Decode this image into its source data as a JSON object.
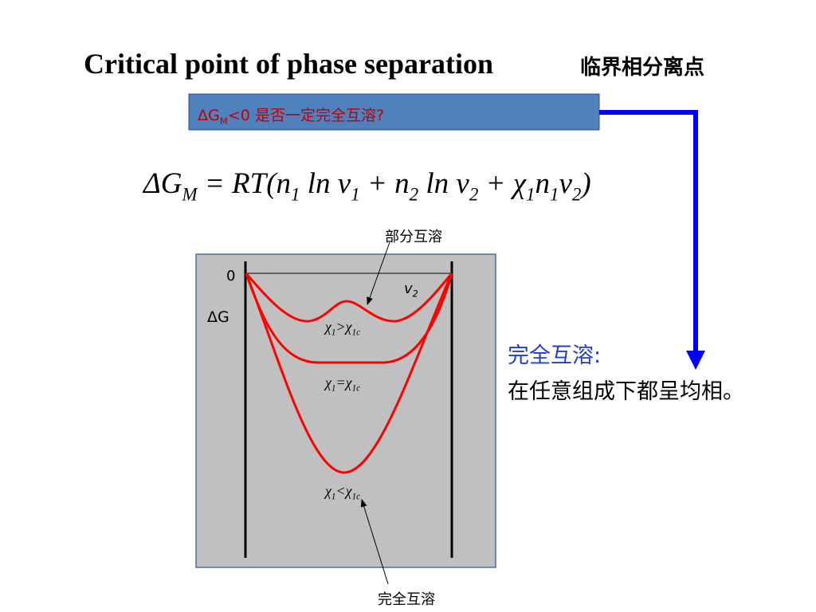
{
  "header": {
    "title": "Critical point of phase separation",
    "title_cn": "临界相分离点"
  },
  "question": {
    "parts": [
      {
        "text": "ΔG",
        "sub": "M"
      },
      {
        "text": "<0 是否一定完全互溶?"
      }
    ]
  },
  "equation": {
    "parts": [
      {
        "text": "ΔG",
        "sub": "M"
      },
      {
        "text": " = RT("
      },
      {
        "text": "n",
        "sub": "1"
      },
      {
        "text": " ln "
      },
      {
        "text": "v",
        "sub": "1"
      },
      {
        "text": " + "
      },
      {
        "text": "n",
        "sub": "2"
      },
      {
        "text": " ln "
      },
      {
        "text": "v",
        "sub": "2"
      },
      {
        "text": " + "
      },
      {
        "text": "χ",
        "sub": "1"
      },
      {
        "text": "n",
        "sub": "1"
      },
      {
        "text": "v",
        "sub": "2"
      },
      {
        "text": ")"
      }
    ]
  },
  "diagram": {
    "top_label": "部分互溶",
    "zero": "0",
    "x_label": {
      "parts": [
        {
          "text": "v",
          "sub": "2"
        }
      ]
    },
    "y_label": "ΔG",
    "curve_labels": [
      {
        "parts": [
          {
            "text": "χ",
            "sub": "1"
          },
          {
            "text": ">"
          },
          {
            "text": "χ",
            "sub": "1c"
          }
        ]
      },
      {
        "parts": [
          {
            "text": "χ",
            "sub": "1"
          },
          {
            "text": "="
          },
          {
            "text": "χ",
            "sub": "1c"
          }
        ]
      },
      {
        "parts": [
          {
            "text": "χ",
            "sub": "1"
          },
          {
            "text": "<"
          },
          {
            "text": "χ",
            "sub": "1c"
          }
        ]
      }
    ],
    "bottom_label": "完全互溶"
  },
  "note": {
    "heading": "完全互溶:",
    "text": "在任意组成下都呈均相。"
  }
}
